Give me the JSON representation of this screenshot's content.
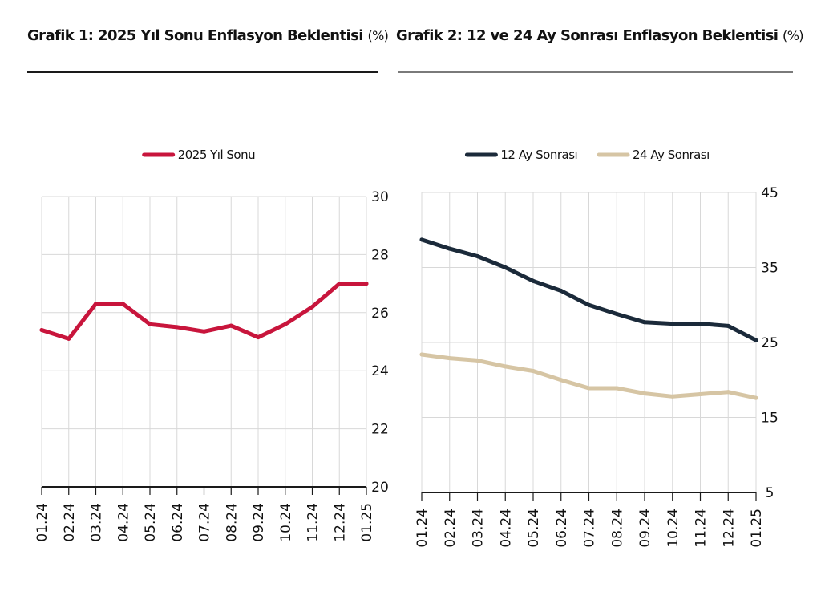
{
  "charts": [
    {
      "title": "Grafik 1: 2025 Yıl Sonu Enflasyon Beklentisi",
      "unit": "(%)"
    },
    {
      "title": "Grafik 2: 12 ve 24 Ay Sonrası Enflasyon Beklentisi",
      "unit": "(%)"
    }
  ],
  "colors": {
    "red": "#c8153c",
    "navy": "#1b2a3a",
    "beige": "#d6c5a4",
    "grid": "#d8d8d8",
    "axis": "#1a1a1a"
  },
  "chart_data": [
    {
      "type": "line",
      "title": "Grafik 1: 2025 Yıl Sonu Enflasyon Beklentisi (%)",
      "categories": [
        "01.24",
        "02.24",
        "03.24",
        "04.24",
        "05.24",
        "06.24",
        "07.24",
        "08.24",
        "09.24",
        "10.24",
        "11.24",
        "12.24",
        "01.25"
      ],
      "series": [
        {
          "name": "2025 Yıl Sonu",
          "color": "#c8153c",
          "values": [
            25.4,
            25.1,
            26.3,
            26.3,
            25.6,
            25.5,
            25.35,
            25.55,
            25.15,
            25.6,
            26.2,
            27.0,
            27.0
          ]
        }
      ],
      "yaxis": {
        "position": "right",
        "min": 20,
        "max": 30,
        "ticks": [
          "30",
          "28",
          "26",
          "24",
          "22",
          "20"
        ]
      },
      "grid": true,
      "legend": "top-center"
    },
    {
      "type": "line",
      "title": "Grafik 2: 12 ve 24 Ay Sonrası Enflasyon Beklentisi (%)",
      "categories": [
        "01.24",
        "02.24",
        "03.24",
        "04.24",
        "05.24",
        "06.24",
        "07.24",
        "08.24",
        "09.24",
        "10.24",
        "11.24",
        "12.24",
        "01.25"
      ],
      "series": [
        {
          "name": "12 Ay Sonrası",
          "color": "#1b2a3a",
          "values": [
            38.7,
            37.5,
            36.5,
            35.0,
            33.2,
            31.9,
            30.0,
            28.8,
            27.7,
            27.5,
            27.5,
            27.2,
            25.3
          ]
        },
        {
          "name": "24 Ay Sonrası",
          "color": "#d6c5a4",
          "values": [
            23.4,
            22.9,
            22.6,
            21.8,
            21.2,
            20.0,
            18.9,
            18.9,
            18.2,
            17.8,
            18.1,
            18.4,
            17.6
          ]
        }
      ],
      "yaxis": {
        "position": "right",
        "min": 5,
        "max": 45,
        "ticks": [
          "45",
          "35",
          "25",
          "15",
          "5"
        ]
      },
      "grid": true,
      "legend": "top-center"
    }
  ]
}
